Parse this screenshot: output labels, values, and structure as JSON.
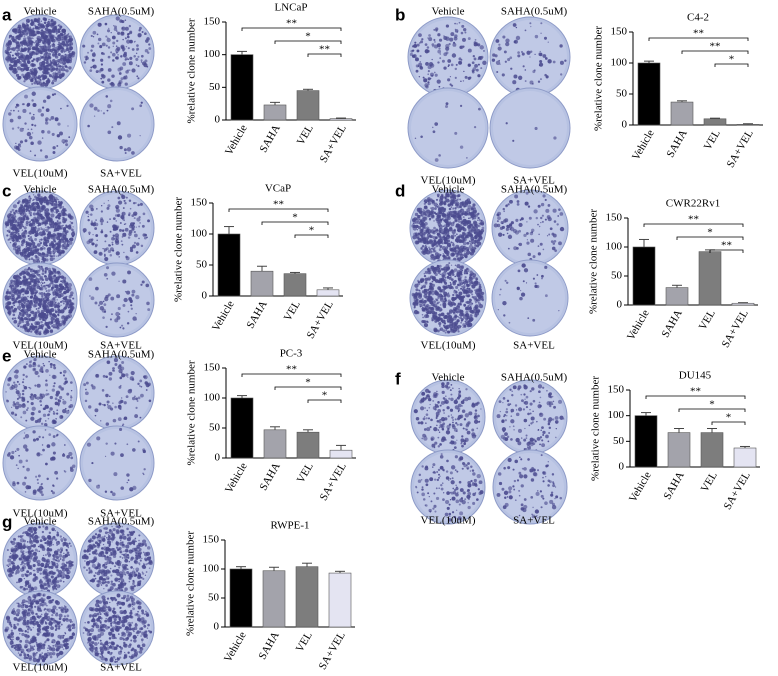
{
  "chart_data": [
    {
      "type": "bar",
      "panel": "a",
      "title": "LNCaP",
      "ylabel": "%relative clone number",
      "dish_labels": [
        "Vehicle",
        "SAHA(0.5uM)",
        "VEL(10uM)",
        "SA+VEL"
      ],
      "categories": [
        "Vehicle",
        "SAHA",
        "VEL",
        "SA+VEL"
      ],
      "values": [
        100,
        23,
        45,
        2
      ],
      "errors": [
        5,
        4,
        2,
        1
      ],
      "colors": [
        "#000000",
        "#a3a3ab",
        "#7d7d7d",
        "#e4e4f2"
      ],
      "ylim": [
        0,
        150
      ],
      "yticks": [
        0,
        50,
        100,
        150
      ],
      "significance": [
        "**",
        "*",
        "**"
      ]
    },
    {
      "type": "bar",
      "panel": "b",
      "title": "C4-2",
      "ylabel": "%relative clone number",
      "dish_labels": [
        "Vehicle",
        "SAHA(0.5uM)",
        "VEL(10uM)",
        "SA+VEL"
      ],
      "categories": [
        "Vehicle",
        "SAHA",
        "VEL",
        "SA+VEL"
      ],
      "values": [
        100,
        37,
        10,
        1
      ],
      "errors": [
        3,
        2,
        1,
        1
      ],
      "colors": [
        "#000000",
        "#a3a3ab",
        "#7d7d7d",
        "#e4e4f2"
      ],
      "ylim": [
        0,
        150
      ],
      "yticks": [
        0,
        50,
        100,
        150
      ],
      "significance": [
        "**",
        "**",
        "*"
      ]
    },
    {
      "type": "bar",
      "panel": "c",
      "title": "VCaP",
      "ylabel": "%relative clone number",
      "dish_labels": [
        "Vehicle",
        "SAHA(0.5uM)",
        "VEL(10uM)",
        "SA+VEL"
      ],
      "categories": [
        "Vehicle",
        "SAHA",
        "VEL",
        "SA+VEL"
      ],
      "values": [
        100,
        40,
        36,
        10
      ],
      "errors": [
        12,
        8,
        2,
        3
      ],
      "colors": [
        "#000000",
        "#a3a3ab",
        "#7d7d7d",
        "#e4e4f2"
      ],
      "ylim": [
        0,
        150
      ],
      "yticks": [
        0,
        50,
        100,
        150
      ],
      "significance": [
        "**",
        "*",
        "*"
      ]
    },
    {
      "type": "bar",
      "panel": "d",
      "title": "CWR22Rv1",
      "ylabel": "%relative clone number",
      "dish_labels": [
        "Vehicle",
        "SAHA(0.5uM)",
        "VEL(10uM)",
        "SA+VEL"
      ],
      "categories": [
        "Vehicle",
        "SAHA",
        "VEL",
        "SA+VEL"
      ],
      "values": [
        100,
        30,
        92,
        3
      ],
      "errors": [
        13,
        4,
        3,
        1
      ],
      "colors": [
        "#000000",
        "#a3a3ab",
        "#7d7d7d",
        "#e4e4f2"
      ],
      "ylim": [
        0,
        150
      ],
      "yticks": [
        0,
        50,
        100,
        150
      ],
      "significance": [
        "**",
        "*",
        "**"
      ]
    },
    {
      "type": "bar",
      "panel": "e",
      "title": "PC-3",
      "ylabel": "%relative clone number",
      "dish_labels": [
        "Vehicle",
        "SAHA(0.5uM)",
        "VEL(10uM)",
        "SA+VEL"
      ],
      "categories": [
        "Vehicle",
        "SAHA",
        "VEL",
        "SA+VEL"
      ],
      "values": [
        100,
        47,
        43,
        13
      ],
      "errors": [
        4,
        5,
        4,
        8
      ],
      "colors": [
        "#000000",
        "#a3a3ab",
        "#7d7d7d",
        "#e4e4f2"
      ],
      "ylim": [
        0,
        150
      ],
      "yticks": [
        0,
        50,
        100,
        150
      ],
      "significance": [
        "**",
        "*",
        "*"
      ]
    },
    {
      "type": "bar",
      "panel": "f",
      "title": "DU145",
      "ylabel": "%relative clone number",
      "dish_labels": [
        "Vehicle",
        "SAHA(0.5uM)",
        "VEL(10uM)",
        "SA+VEL"
      ],
      "categories": [
        "Vehicle",
        "SAHA",
        "VEL",
        "SA+VEL"
      ],
      "values": [
        100,
        67,
        67,
        37
      ],
      "errors": [
        6,
        8,
        8,
        3
      ],
      "colors": [
        "#000000",
        "#a3a3ab",
        "#7d7d7d",
        "#e4e4f2"
      ],
      "ylim": [
        0,
        150
      ],
      "yticks": [
        0,
        50,
        100,
        150
      ],
      "significance": [
        "**",
        "*",
        "*"
      ]
    },
    {
      "type": "bar",
      "panel": "g",
      "title": "RWPE-1",
      "ylabel": "%relative clone number",
      "dish_labels": [
        "Vehicle",
        "SAHA(0.5uM)",
        "VEL(10uM)",
        "SA+VEL"
      ],
      "categories": [
        "Vehicle",
        "SAHA",
        "VEL",
        "SA+VEL"
      ],
      "values": [
        100,
        97,
        104,
        93
      ],
      "errors": [
        4,
        6,
        6,
        3
      ],
      "colors": [
        "#000000",
        "#a3a3ab",
        "#7d7d7d",
        "#e4e4f2"
      ],
      "ylim": [
        0,
        150
      ],
      "yticks": [
        0,
        50,
        100,
        150
      ],
      "significance": []
    }
  ]
}
